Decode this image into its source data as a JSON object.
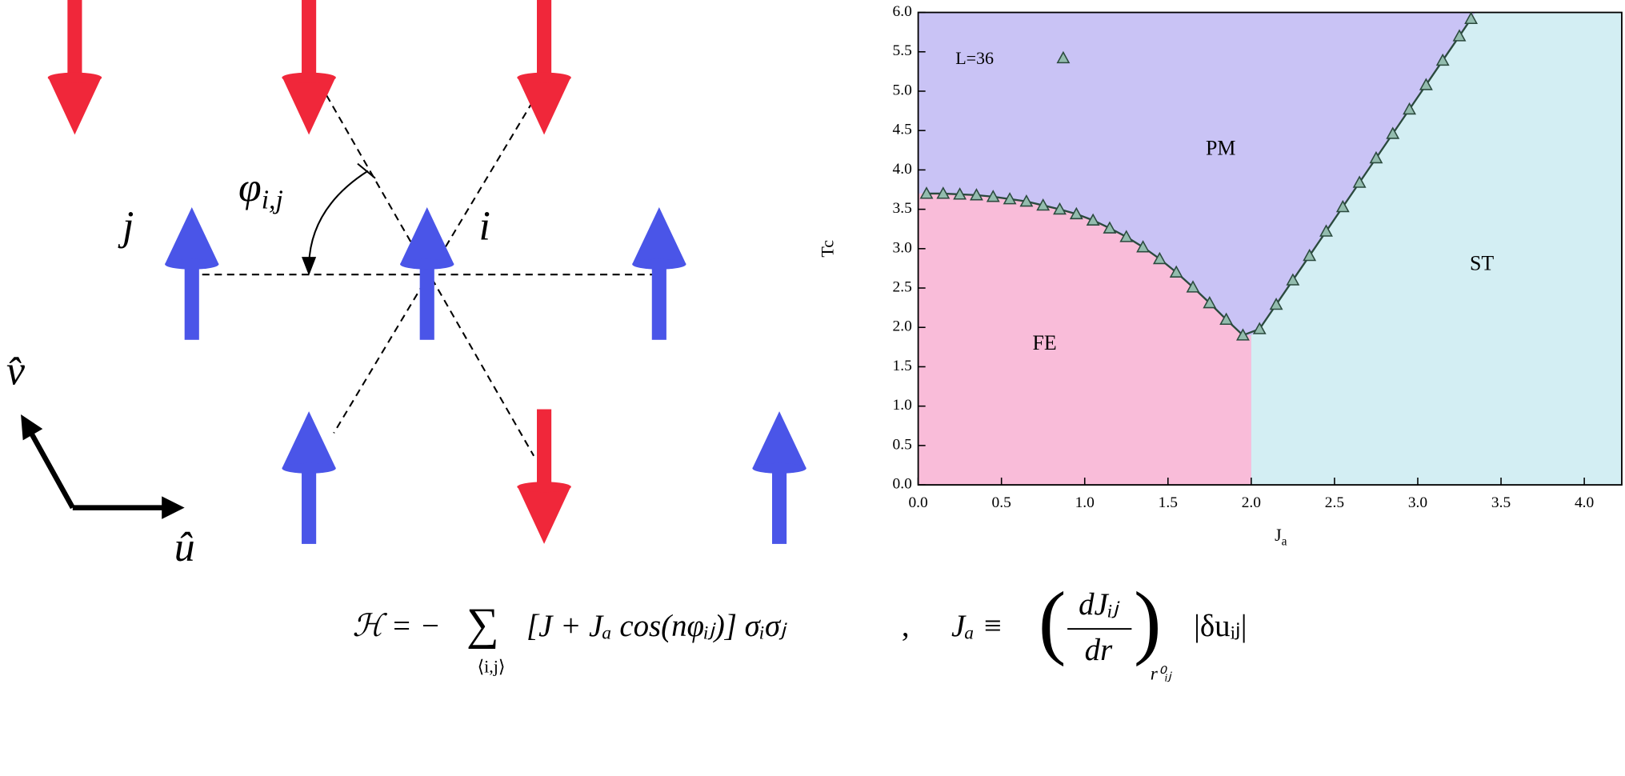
{
  "chart_data": {
    "type": "line",
    "x_label": {
      "base": "J",
      "sub": "a"
    },
    "y_label": "Tc",
    "annotations": [
      "PM",
      "FE",
      "ST"
    ],
    "region_colors": [
      "#c9c3f5",
      "#f9bcd9",
      "#d3eef3"
    ],
    "xlim": [
      0,
      4.225
    ],
    "ylim": [
      0,
      6
    ],
    "xticks": [
      {
        "value": 0,
        "label": "0.0"
      },
      {
        "value": 0.5,
        "label": "0.5"
      },
      {
        "value": 1,
        "label": "1.0"
      },
      {
        "value": 1.5,
        "label": "1.5"
      },
      {
        "value": 2,
        "label": "2.0"
      },
      {
        "value": 2.5,
        "label": "2.5"
      },
      {
        "value": 3,
        "label": "3.0"
      },
      {
        "value": 3.5,
        "label": "3.5"
      },
      {
        "value": 4,
        "label": "4.0"
      }
    ],
    "yticks": [
      {
        "value": 0,
        "label": "0.0"
      },
      {
        "value": 0.5,
        "label": "0.5"
      },
      {
        "value": 1,
        "label": "1.0"
      },
      {
        "value": 1.5,
        "label": "1.5"
      },
      {
        "value": 2,
        "label": "2.0"
      },
      {
        "value": 2.5,
        "label": "2.5"
      },
      {
        "value": 3,
        "label": "3.0"
      },
      {
        "value": 3.5,
        "label": "3.5"
      },
      {
        "value": 4,
        "label": "4.0"
      },
      {
        "value": 4.5,
        "label": "4.5"
      },
      {
        "value": 5,
        "label": "5.0"
      },
      {
        "value": 5.5,
        "label": "5.5"
      },
      {
        "value": 6,
        "label": "6.0"
      }
    ],
    "series": [
      {
        "name": "L=36",
        "color": "#2b4a3e",
        "marker_color": "#93bcae",
        "x": [
          0.05,
          0.15,
          0.25,
          0.35,
          0.45,
          0.55,
          0.65,
          0.75,
          0.85,
          0.95,
          1.05,
          1.15,
          1.25,
          1.35,
          1.45,
          1.55,
          1.65,
          1.75,
          1.85,
          1.95,
          2.05,
          2.15,
          2.25,
          2.35,
          2.45,
          2.55,
          2.65,
          2.75,
          2.85,
          2.95,
          3.05,
          3.15,
          3.25,
          3.32
        ],
        "values": [
          3.7,
          3.7,
          3.69,
          3.68,
          3.66,
          3.63,
          3.6,
          3.55,
          3.5,
          3.44,
          3.36,
          3.26,
          3.15,
          3.02,
          2.87,
          2.7,
          2.51,
          2.31,
          2.1,
          1.9,
          1.98,
          2.29,
          2.6,
          2.91,
          3.22,
          3.53,
          3.84,
          4.15,
          4.46,
          4.77,
          5.08,
          5.39,
          5.7,
          5.92
        ]
      }
    ]
  },
  "diagram": {
    "labels": {
      "phi": "φ",
      "phi_sub": "i,j",
      "j": "j",
      "i": "i",
      "v": "v̂",
      "u": "û"
    }
  },
  "equation": {
    "lhs": "ℋ = −",
    "sum": "∑",
    "sum_sub": "⟨i,j⟩",
    "body": "[J + Jₐ cos(nφᵢⱼ)] σᵢσⱼ",
    "sep": ",",
    "rhs": "Jₐ ≡",
    "frac_num": "dJᵢⱼ",
    "frac_den": "dr",
    "eval_sub": "r⁰ᵢⱼ",
    "tail": "|δuᵢⱼ|"
  }
}
